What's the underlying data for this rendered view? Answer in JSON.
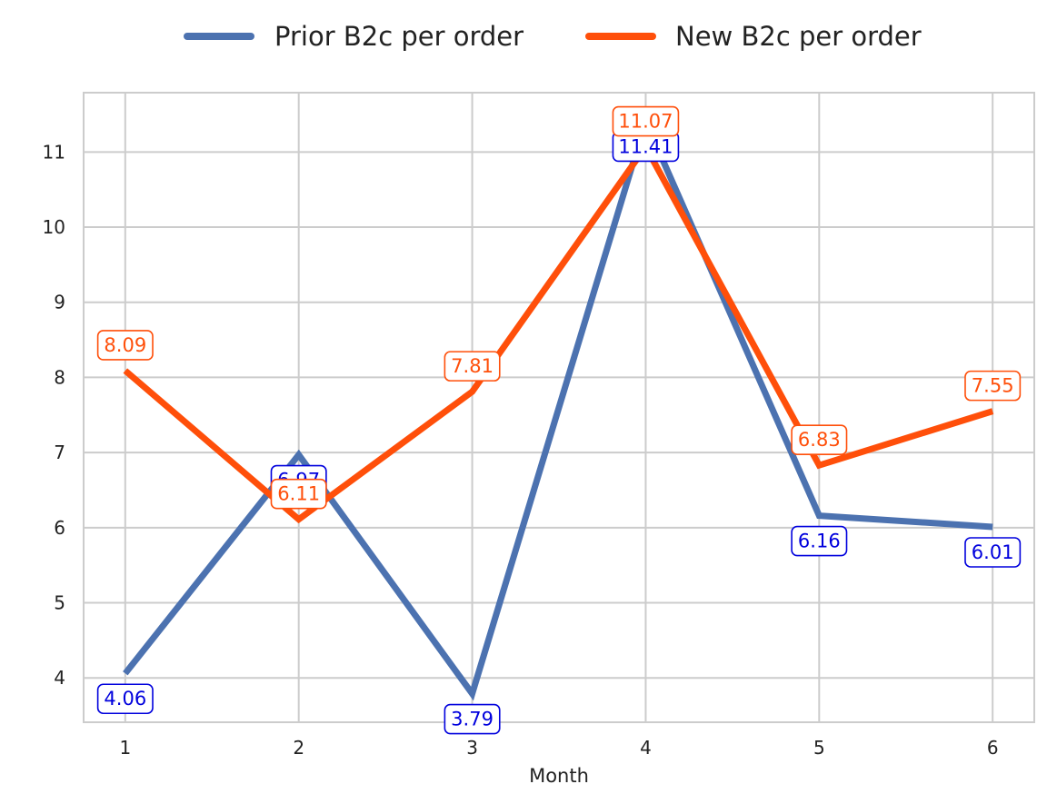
{
  "chart_data": {
    "type": "line",
    "title": "",
    "xlabel": "Month",
    "ylabel": "",
    "x": [
      1,
      2,
      3,
      4,
      5,
      6
    ],
    "xlim": [
      0.76,
      6.24
    ],
    "ylim": [
      3.41,
      11.79
    ],
    "x_ticks": [
      1,
      2,
      3,
      4,
      5,
      6
    ],
    "y_ticks": [
      4,
      5,
      6,
      7,
      8,
      9,
      10,
      11
    ],
    "grid": true,
    "legend_position": "top-center",
    "series": [
      {
        "name": "Prior B2c per order",
        "color": "#4c72b0",
        "label_color": "#0000dd",
        "label_placement": "below",
        "values": [
          4.06,
          6.97,
          3.79,
          11.41,
          6.16,
          6.01
        ]
      },
      {
        "name": "New B2c per order",
        "color": "#ff4f0a",
        "label_color": "#ff4f0a",
        "label_placement": "above",
        "values": [
          8.09,
          6.11,
          7.81,
          11.07,
          6.83,
          7.55
        ]
      }
    ]
  }
}
